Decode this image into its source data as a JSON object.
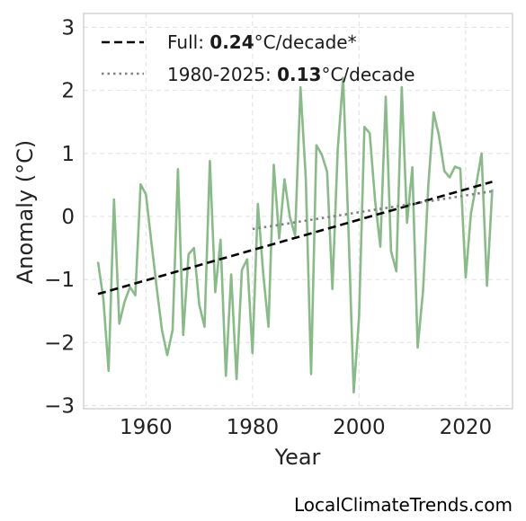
{
  "chart_data": {
    "type": "line",
    "xlabel": "Year",
    "ylabel": "Anomaly (°C)",
    "xlim": [
      1948.3,
      2028.8
    ],
    "ylim": [
      -3.05,
      3.22
    ],
    "x_ticks": [
      1960,
      1980,
      2000,
      2020
    ],
    "y_ticks": [
      3,
      2,
      1,
      0,
      -1,
      -2,
      -3
    ],
    "y_tick_labels": [
      "3",
      "2",
      "1",
      "0",
      "−1",
      "−2",
      "−3"
    ],
    "grid": true,
    "legend_position": "top-left",
    "colors": {
      "series": "#88bb88",
      "full_trend": "#000000",
      "recent_trend": "#808080"
    },
    "series": [
      {
        "x": [
          1951,
          1952,
          1953,
          1954,
          1955,
          1956,
          1957,
          1958,
          1959,
          1960,
          1961,
          1962,
          1963,
          1964,
          1965,
          1966,
          1967,
          1968,
          1969,
          1970,
          1971,
          1972,
          1973,
          1974,
          1975,
          1976,
          1977,
          1978,
          1979,
          1980,
          1981,
          1982,
          1983,
          1984,
          1985,
          1986,
          1987,
          1988,
          1989,
          1990,
          1991,
          1992,
          1993,
          1994,
          1995,
          1996,
          1997,
          1998,
          1999,
          2000,
          2001,
          2002,
          2003,
          2004,
          2005,
          2006,
          2007,
          2008,
          2009,
          2010,
          2011,
          2012,
          2013,
          2014,
          2015,
          2016,
          2017,
          2018,
          2019,
          2020,
          2021,
          2022,
          2023,
          2024,
          2025
        ],
        "y": [
          -0.72,
          -1.3,
          -2.45,
          0.27,
          -1.7,
          -1.35,
          -1.12,
          -1.25,
          0.51,
          0.35,
          -0.4,
          -1.12,
          -1.8,
          -2.2,
          -1.8,
          0.75,
          -1.88,
          -0.6,
          -0.5,
          -1.4,
          -1.75,
          0.88,
          -1.2,
          -0.37,
          -2.53,
          -0.92,
          -2.58,
          -0.85,
          -0.68,
          -2.17,
          0.2,
          -0.9,
          -1.75,
          0.82,
          -0.35,
          0.59,
          0.0,
          -0.3,
          2.05,
          0.6,
          -2.5,
          1.13,
          0.98,
          0.71,
          -1.15,
          1.06,
          2.2,
          -0.18,
          -2.79,
          -1.6,
          1.42,
          1.32,
          0.26,
          -0.48,
          1.9,
          -0.55,
          -0.87,
          2.05,
          -0.1,
          0.78,
          -2.08,
          -1.18,
          0.5,
          1.65,
          1.28,
          0.72,
          0.62,
          0.79,
          0.76,
          -0.97,
          0.05,
          0.51,
          1.0,
          -1.1,
          0.43
        ]
      }
    ],
    "trend_lines": [
      {
        "name_prefix": "Full: ",
        "rate": "0.24",
        "name_suffix": "°C/decade*",
        "style": "dashed",
        "x": [
          1951,
          2025
        ],
        "y": [
          -1.23,
          0.55
        ]
      },
      {
        "name_prefix": "1980-2025: ",
        "rate": "0.13",
        "name_suffix": "°C/decade",
        "style": "dotted",
        "x": [
          1980,
          2025
        ],
        "y": [
          -0.2,
          0.4
        ]
      }
    ]
  },
  "credit": "LocalClimateTrends.com"
}
